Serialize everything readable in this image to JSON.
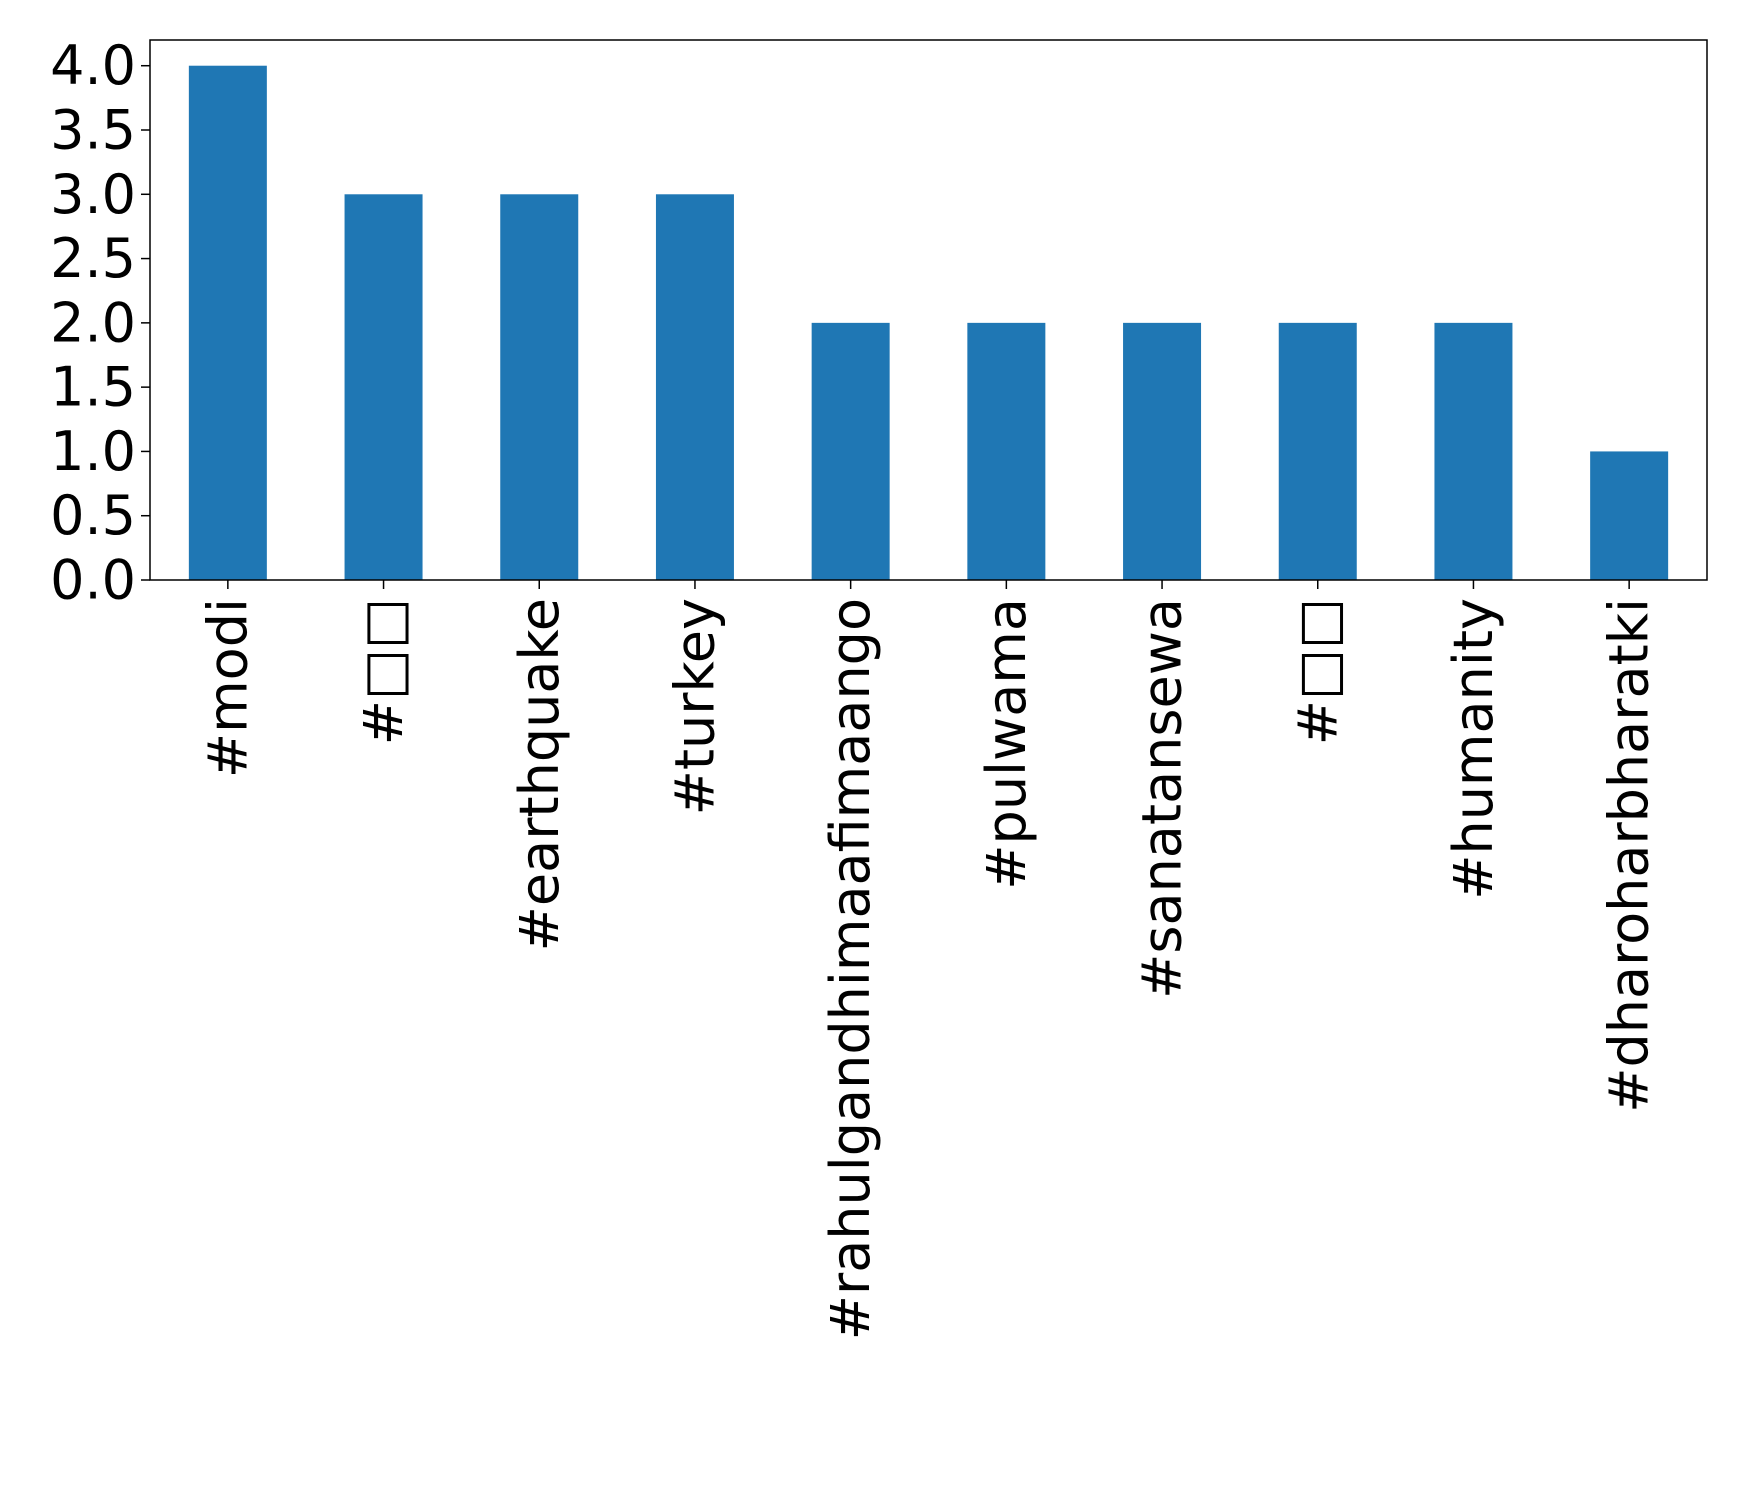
{
  "chart_data": {
    "type": "bar",
    "title": "",
    "xlabel": "",
    "ylabel": "",
    "categories": [
      "#modi",
      "#□□",
      "#earthquake",
      "#turkey",
      "#rahulgandhimaafimaango",
      "#pulwama",
      "#sanatansewa",
      "#□□",
      "#humanity",
      "#dharoharbharatki"
    ],
    "values": [
      4,
      3,
      3,
      3,
      2,
      2,
      2,
      2,
      2,
      1
    ],
    "ylim": [
      0,
      4.2
    ],
    "yticks": [
      "0.0",
      "0.5",
      "1.0",
      "1.5",
      "2.0",
      "2.5",
      "3.0",
      "3.5",
      "4.0"
    ],
    "grid": false,
    "legend": "none",
    "bar_color": "#1f77b4"
  }
}
